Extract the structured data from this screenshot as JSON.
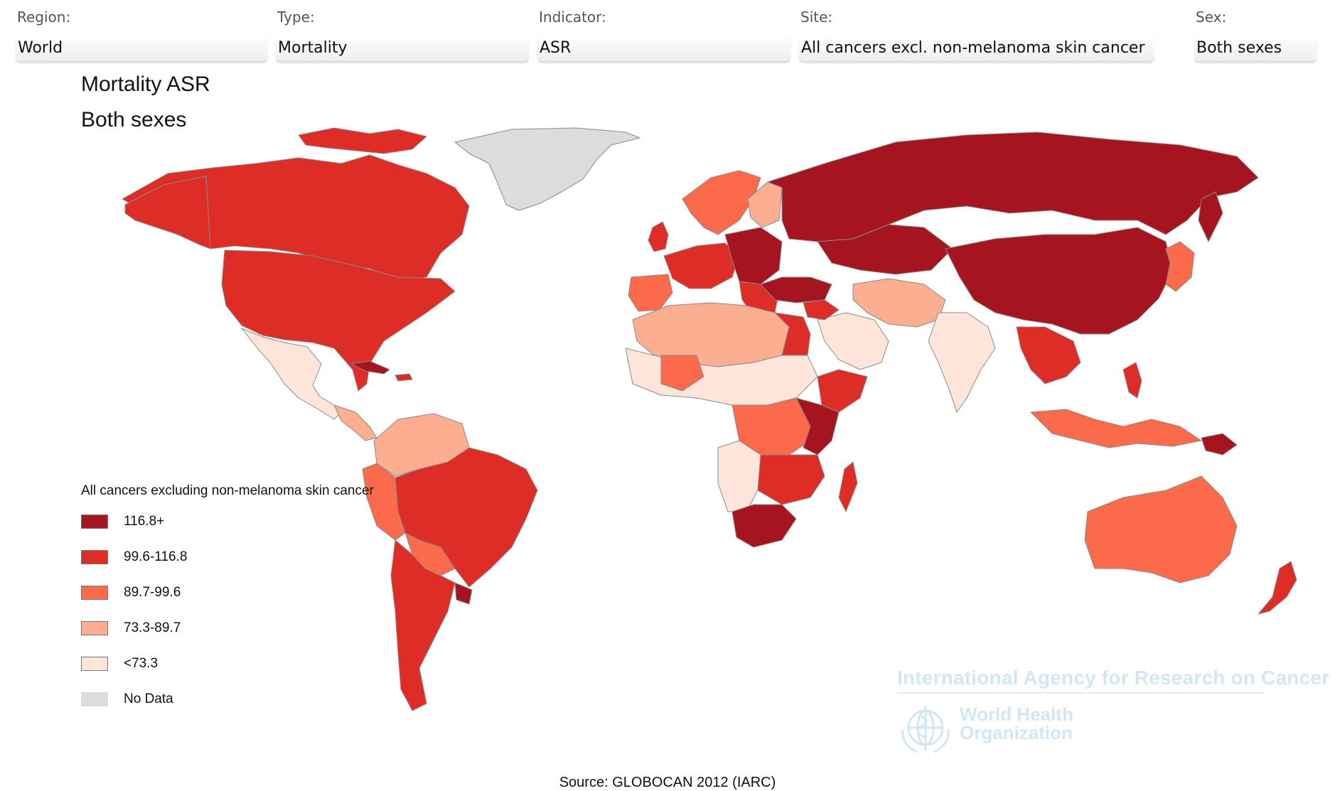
{
  "filters": [
    {
      "key": "region",
      "label": "Region:",
      "value": "World"
    },
    {
      "key": "type",
      "label": "Type:",
      "value": "Mortality"
    },
    {
      "key": "indicator",
      "label": "Indicator:",
      "value": "ASR"
    },
    {
      "key": "site",
      "label": "Site:",
      "value": "All cancers excl. non-melanoma skin cancer"
    },
    {
      "key": "sex",
      "label": "Sex:",
      "value": "Both sexes"
    }
  ],
  "title_line1": "Mortality ASR",
  "title_line2": "Both sexes",
  "legend": {
    "title": "All cancers excluding non-melanoma skin cancer",
    "classes": [
      {
        "label": "116.8+",
        "color": "#a5141f"
      },
      {
        "label": "99.6-116.8",
        "color": "#de2d26"
      },
      {
        "label": "89.7-99.6",
        "color": "#fb6a4a"
      },
      {
        "label": "73.3-89.7",
        "color": "#fcae91"
      },
      {
        "label": "<73.3",
        "color": "#fee5d9"
      },
      {
        "label": "No Data",
        "color": "#dcdcdc"
      }
    ]
  },
  "watermark": {
    "agency": "International Agency for Research on Cancer",
    "who_line1": "World Health",
    "who_line2": "Organization"
  },
  "source": "Source: GLOBOCAN 2012 (IARC)"
}
